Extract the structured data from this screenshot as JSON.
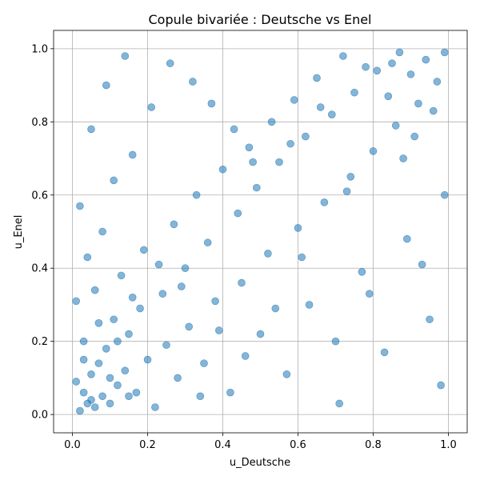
{
  "chart_data": {
    "type": "scatter",
    "title": "Copule bivariée : Deutsche vs Enel",
    "xlabel": "u_Deutsche",
    "ylabel": "u_Enel",
    "xlim": [
      -0.05,
      1.05
    ],
    "ylim": [
      -0.05,
      1.05
    ],
    "xticks": [
      "0.0",
      "0.2",
      "0.4",
      "0.6",
      "0.8",
      "1.0"
    ],
    "yticks": [
      "0.0",
      "0.2",
      "0.4",
      "0.6",
      "0.8",
      "1.0"
    ],
    "grid": true,
    "point_color": "#1f77b4",
    "point_alpha": 0.55,
    "series": [
      {
        "points": [
          [
            0.02,
            0.01
          ],
          [
            0.04,
            0.03
          ],
          [
            0.06,
            0.02
          ],
          [
            0.03,
            0.06
          ],
          [
            0.08,
            0.05
          ],
          [
            0.01,
            0.09
          ],
          [
            0.05,
            0.11
          ],
          [
            0.1,
            0.03
          ],
          [
            0.12,
            0.08
          ],
          [
            0.07,
            0.14
          ],
          [
            0.14,
            0.12
          ],
          [
            0.09,
            0.18
          ],
          [
            0.17,
            0.06
          ],
          [
            0.03,
            0.2
          ],
          [
            0.2,
            0.15
          ],
          [
            0.15,
            0.22
          ],
          [
            0.22,
            0.02
          ],
          [
            0.11,
            0.26
          ],
          [
            0.25,
            0.19
          ],
          [
            0.18,
            0.29
          ],
          [
            0.01,
            0.31
          ],
          [
            0.28,
            0.1
          ],
          [
            0.06,
            0.34
          ],
          [
            0.31,
            0.24
          ],
          [
            0.24,
            0.33
          ],
          [
            0.13,
            0.38
          ],
          [
            0.35,
            0.14
          ],
          [
            0.3,
            0.4
          ],
          [
            0.38,
            0.31
          ],
          [
            0.04,
            0.43
          ],
          [
            0.42,
            0.06
          ],
          [
            0.19,
            0.45
          ],
          [
            0.45,
            0.36
          ],
          [
            0.36,
            0.47
          ],
          [
            0.08,
            0.5
          ],
          [
            0.5,
            0.22
          ],
          [
            0.27,
            0.52
          ],
          [
            0.52,
            0.44
          ],
          [
            0.44,
            0.55
          ],
          [
            0.02,
            0.57
          ],
          [
            0.57,
            0.11
          ],
          [
            0.33,
            0.6
          ],
          [
            0.6,
            0.51
          ],
          [
            0.49,
            0.62
          ],
          [
            0.11,
            0.64
          ],
          [
            0.63,
            0.3
          ],
          [
            0.4,
            0.67
          ],
          [
            0.67,
            0.58
          ],
          [
            0.55,
            0.69
          ],
          [
            0.16,
            0.71
          ],
          [
            0.71,
            0.03
          ],
          [
            0.47,
            0.73
          ],
          [
            0.74,
            0.65
          ],
          [
            0.62,
            0.76
          ],
          [
            0.05,
            0.78
          ],
          [
            0.77,
            0.39
          ],
          [
            0.53,
            0.8
          ],
          [
            0.8,
            0.72
          ],
          [
            0.69,
            0.82
          ],
          [
            0.21,
            0.84
          ],
          [
            0.83,
            0.17
          ],
          [
            0.59,
            0.86
          ],
          [
            0.86,
            0.79
          ],
          [
            0.75,
            0.88
          ],
          [
            0.09,
            0.9
          ],
          [
            0.89,
            0.48
          ],
          [
            0.65,
            0.92
          ],
          [
            0.92,
            0.85
          ],
          [
            0.81,
            0.94
          ],
          [
            0.26,
            0.96
          ],
          [
            0.95,
            0.26
          ],
          [
            0.72,
            0.98
          ],
          [
            0.97,
            0.91
          ],
          [
            0.87,
            0.99
          ],
          [
            0.14,
            0.98
          ],
          [
            0.99,
            0.6
          ],
          [
            0.78,
            0.95
          ],
          [
            0.94,
            0.97
          ],
          [
            0.9,
            0.93
          ],
          [
            0.32,
            0.91
          ],
          [
            0.98,
            0.08
          ],
          [
            0.84,
            0.87
          ],
          [
            0.96,
            0.83
          ],
          [
            0.91,
            0.76
          ],
          [
            0.37,
            0.85
          ],
          [
            0.93,
            0.41
          ],
          [
            0.88,
            0.7
          ],
          [
            0.99,
            0.99
          ],
          [
            0.85,
            0.96
          ],
          [
            0.43,
            0.78
          ],
          [
            0.79,
            0.33
          ],
          [
            0.73,
            0.61
          ],
          [
            0.66,
            0.84
          ],
          [
            0.58,
            0.74
          ],
          [
            0.48,
            0.69
          ],
          [
            0.7,
            0.2
          ],
          [
            0.61,
            0.43
          ],
          [
            0.54,
            0.29
          ],
          [
            0.46,
            0.16
          ],
          [
            0.39,
            0.23
          ],
          [
            0.34,
            0.05
          ],
          [
            0.29,
            0.35
          ],
          [
            0.23,
            0.41
          ],
          [
            0.16,
            0.32
          ],
          [
            0.12,
            0.2
          ],
          [
            0.07,
            0.25
          ],
          [
            0.05,
            0.04
          ],
          [
            0.03,
            0.15
          ],
          [
            0.1,
            0.1
          ],
          [
            0.15,
            0.05
          ]
        ]
      }
    ]
  }
}
